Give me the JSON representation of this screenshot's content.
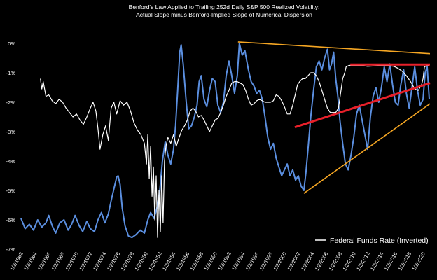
{
  "chart_data": {
    "type": "line",
    "title_lines": [
      "Benford's Law Applied to Trailing 252d Daily S&P 500 Realized Volatility:",
      "Actual Slope minus Benford-Implied Slope of Numerical Dispersion"
    ],
    "y_ticks": [
      "0%",
      "-1%",
      "-2%",
      "-3%",
      "-4%",
      "-5%",
      "-6%",
      "-7%"
    ],
    "ylim": [
      -7,
      0
    ],
    "xlim": [
      1962,
      2021
    ],
    "x_ticks": [
      "1/2/1962",
      "1/2/1964",
      "1/2/1966",
      "1/2/1968",
      "1/2/1970",
      "1/2/1972",
      "1/2/1974",
      "1/2/1976",
      "1/2/1978",
      "1/2/1980",
      "1/2/1982",
      "1/2/1984",
      "1/2/1986",
      "1/2/1988",
      "1/2/1990",
      "1/2/1992",
      "1/2/1994",
      "1/2/1996",
      "1/2/1998",
      "1/2/2000",
      "1/2/2002",
      "1/2/2004",
      "1/2/2006",
      "1/2/2008",
      "1/2/2010",
      "1/2/2012",
      "1/2/2014",
      "1/2/2016",
      "1/2/2018",
      "1/2/2020"
    ],
    "legend": [
      {
        "label": "Federal Funds Rate (Inverted)",
        "color": "#ffffff"
      }
    ],
    "series": [
      {
        "color": "#5b8fe0",
        "points": [
          [
            1962.0,
            -5.95
          ],
          [
            1962.6,
            -6.3
          ],
          [
            1963.2,
            -6.15
          ],
          [
            1963.8,
            -6.35
          ],
          [
            1964.4,
            -6.0
          ],
          [
            1965.0,
            -6.25
          ],
          [
            1965.6,
            -6.1
          ],
          [
            1966.0,
            -5.85
          ],
          [
            1966.5,
            -6.2
          ],
          [
            1967.0,
            -6.45
          ],
          [
            1967.6,
            -6.1
          ],
          [
            1968.2,
            -6.0
          ],
          [
            1968.8,
            -6.35
          ],
          [
            1969.3,
            -6.15
          ],
          [
            1969.8,
            -5.85
          ],
          [
            1970.4,
            -6.2
          ],
          [
            1970.9,
            -6.4
          ],
          [
            1971.5,
            -6.05
          ],
          [
            1972.0,
            -6.3
          ],
          [
            1972.6,
            -6.4
          ],
          [
            1973.1,
            -6.0
          ],
          [
            1973.6,
            -5.75
          ],
          [
            1974.1,
            -6.1
          ],
          [
            1974.6,
            -5.8
          ],
          [
            1975.0,
            -5.35
          ],
          [
            1975.4,
            -4.95
          ],
          [
            1975.8,
            -4.55
          ],
          [
            1976.0,
            -4.5
          ],
          [
            1976.3,
            -4.8
          ],
          [
            1976.6,
            -5.6
          ],
          [
            1977.0,
            -6.2
          ],
          [
            1977.5,
            -6.55
          ],
          [
            1978.0,
            -6.6
          ],
          [
            1978.6,
            -6.5
          ],
          [
            1979.2,
            -6.35
          ],
          [
            1979.8,
            -6.45
          ],
          [
            1980.3,
            -6.0
          ],
          [
            1980.7,
            -5.75
          ],
          [
            1981.2,
            -5.95
          ],
          [
            1981.6,
            -5.6
          ],
          [
            1982.0,
            -5.05
          ],
          [
            1982.4,
            -4.0
          ],
          [
            1982.8,
            -3.35
          ],
          [
            1983.2,
            -3.8
          ],
          [
            1983.6,
            -4.1
          ],
          [
            1984.0,
            -3.6
          ],
          [
            1984.3,
            -2.8
          ],
          [
            1984.6,
            -1.6
          ],
          [
            1984.9,
            -0.3
          ],
          [
            1985.1,
            -0.05
          ],
          [
            1985.4,
            -0.7
          ],
          [
            1985.8,
            -1.9
          ],
          [
            1986.2,
            -2.9
          ],
          [
            1986.6,
            -2.8
          ],
          [
            1987.0,
            -2.5
          ],
          [
            1987.4,
            -2.1
          ],
          [
            1987.7,
            -1.3
          ],
          [
            1988.0,
            -1.1
          ],
          [
            1988.4,
            -1.9
          ],
          [
            1988.8,
            -2.15
          ],
          [
            1989.2,
            -1.6
          ],
          [
            1989.6,
            -1.2
          ],
          [
            1990.0,
            -1.3
          ],
          [
            1990.4,
            -2.1
          ],
          [
            1990.8,
            -2.35
          ],
          [
            1991.2,
            -2.0
          ],
          [
            1991.6,
            -1.1
          ],
          [
            1992.0,
            -0.6
          ],
          [
            1992.4,
            -1.1
          ],
          [
            1992.8,
            -1.7
          ],
          [
            1993.2,
            -1.1
          ],
          [
            1993.5,
            0.0
          ],
          [
            1993.9,
            -0.4
          ],
          [
            1994.3,
            -0.25
          ],
          [
            1994.8,
            -0.9
          ],
          [
            1995.2,
            -1.3
          ],
          [
            1995.6,
            -1.45
          ],
          [
            1996.0,
            -1.7
          ],
          [
            1996.4,
            -1.6
          ],
          [
            1996.8,
            -1.9
          ],
          [
            1997.2,
            -2.5
          ],
          [
            1997.6,
            -3.2
          ],
          [
            1998.0,
            -3.6
          ],
          [
            1998.4,
            -3.4
          ],
          [
            1998.8,
            -3.9
          ],
          [
            1999.2,
            -4.2
          ],
          [
            1999.6,
            -4.5
          ],
          [
            2000.0,
            -4.3
          ],
          [
            2000.4,
            -4.1
          ],
          [
            2000.8,
            -4.5
          ],
          [
            2001.2,
            -4.3
          ],
          [
            2001.6,
            -4.65
          ],
          [
            2002.0,
            -4.5
          ],
          [
            2002.4,
            -4.85
          ],
          [
            2002.8,
            -5.0
          ],
          [
            2003.1,
            -4.4
          ],
          [
            2003.4,
            -3.6
          ],
          [
            2003.8,
            -2.5
          ],
          [
            2004.2,
            -1.6
          ],
          [
            2004.6,
            -0.8
          ],
          [
            2005.0,
            -0.6
          ],
          [
            2005.4,
            -0.9
          ],
          [
            2005.8,
            -0.5
          ],
          [
            2006.2,
            -0.2
          ],
          [
            2006.5,
            -0.9
          ],
          [
            2006.8,
            -0.7
          ],
          [
            2007.1,
            -0.3
          ],
          [
            2007.4,
            -1.2
          ],
          [
            2007.7,
            -1.8
          ],
          [
            2008.0,
            -2.6
          ],
          [
            2008.4,
            -3.4
          ],
          [
            2008.8,
            -4.1
          ],
          [
            2009.2,
            -4.3
          ],
          [
            2009.6,
            -3.8
          ],
          [
            2010.0,
            -3.2
          ],
          [
            2010.4,
            -2.4
          ],
          [
            2010.8,
            -2.1
          ],
          [
            2011.2,
            -2.6
          ],
          [
            2011.6,
            -3.1
          ],
          [
            2012.0,
            -3.6
          ],
          [
            2012.4,
            -2.5
          ],
          [
            2012.8,
            -1.8
          ],
          [
            2013.2,
            -1.5
          ],
          [
            2013.6,
            -2.0
          ],
          [
            2014.0,
            -1.5
          ],
          [
            2014.4,
            -0.8
          ],
          [
            2014.8,
            -1.3
          ],
          [
            2015.2,
            -0.7
          ],
          [
            2015.6,
            -1.4
          ],
          [
            2016.0,
            -2.0
          ],
          [
            2016.4,
            -2.1
          ],
          [
            2016.8,
            -1.4
          ],
          [
            2017.2,
            -0.9
          ],
          [
            2017.6,
            -1.7
          ],
          [
            2018.0,
            -2.2
          ],
          [
            2018.4,
            -1.5
          ],
          [
            2018.8,
            -0.8
          ],
          [
            2019.2,
            -1.6
          ],
          [
            2019.6,
            -2.1
          ],
          [
            2020.0,
            -1.9
          ],
          [
            2020.3,
            -1.0
          ],
          [
            2020.6,
            -0.8
          ],
          [
            2020.9,
            -1.9
          ]
        ]
      },
      {
        "name": "Federal Funds Rate (Inverted)",
        "color": "#ffffff",
        "points": [
          [
            1964.8,
            -1.2
          ],
          [
            1965.0,
            -1.55
          ],
          [
            1965.2,
            -1.3
          ],
          [
            1965.6,
            -1.8
          ],
          [
            1966.0,
            -1.75
          ],
          [
            1966.5,
            -1.95
          ],
          [
            1967.0,
            -2.05
          ],
          [
            1967.5,
            -1.9
          ],
          [
            1968.0,
            -2.0
          ],
          [
            1968.5,
            -2.2
          ],
          [
            1969.0,
            -2.35
          ],
          [
            1969.5,
            -2.5
          ],
          [
            1970.0,
            -2.4
          ],
          [
            1970.5,
            -2.6
          ],
          [
            1971.0,
            -2.75
          ],
          [
            1971.5,
            -2.5
          ],
          [
            1972.0,
            -2.2
          ],
          [
            1972.4,
            -2.0
          ],
          [
            1972.8,
            -2.3
          ],
          [
            1973.1,
            -2.9
          ],
          [
            1973.4,
            -3.6
          ],
          [
            1973.8,
            -3.1
          ],
          [
            1974.2,
            -2.8
          ],
          [
            1974.6,
            -3.3
          ],
          [
            1975.0,
            -2.2
          ],
          [
            1975.4,
            -2.0
          ],
          [
            1975.8,
            -2.4
          ],
          [
            1976.3,
            -1.95
          ],
          [
            1976.8,
            -2.1
          ],
          [
            1977.3,
            -2.0
          ],
          [
            1977.8,
            -2.3
          ],
          [
            1978.3,
            -2.7
          ],
          [
            1978.8,
            -2.95
          ],
          [
            1979.3,
            -3.1
          ],
          [
            1979.8,
            -3.4
          ],
          [
            1980.1,
            -4.1
          ],
          [
            1980.3,
            -3.1
          ],
          [
            1980.5,
            -4.6
          ],
          [
            1980.7,
            -3.5
          ],
          [
            1980.9,
            -5.2
          ],
          [
            1981.1,
            -4.2
          ],
          [
            1981.3,
            -6.0
          ],
          [
            1981.5,
            -4.5
          ],
          [
            1981.7,
            -6.6
          ],
          [
            1981.9,
            -5.0
          ],
          [
            1982.1,
            -6.4
          ],
          [
            1982.3,
            -4.5
          ],
          [
            1982.5,
            -6.1
          ],
          [
            1982.7,
            -4.0
          ],
          [
            1982.9,
            -3.5
          ],
          [
            1983.2,
            -3.2
          ],
          [
            1983.6,
            -3.4
          ],
          [
            1984.0,
            -3.1
          ],
          [
            1984.4,
            -3.5
          ],
          [
            1984.8,
            -3.2
          ],
          [
            1985.2,
            -2.95
          ],
          [
            1985.6,
            -2.8
          ],
          [
            1986.0,
            -2.6
          ],
          [
            1986.4,
            -2.3
          ],
          [
            1986.8,
            -2.2
          ],
          [
            1987.2,
            -2.3
          ],
          [
            1987.6,
            -2.5
          ],
          [
            1988.0,
            -2.45
          ],
          [
            1988.4,
            -2.6
          ],
          [
            1988.8,
            -2.8
          ],
          [
            1989.2,
            -3.0
          ],
          [
            1989.6,
            -2.8
          ],
          [
            1990.0,
            -2.6
          ],
          [
            1990.4,
            -2.55
          ],
          [
            1990.8,
            -2.35
          ],
          [
            1991.2,
            -2.1
          ],
          [
            1991.6,
            -1.8
          ],
          [
            1992.0,
            -1.6
          ],
          [
            1992.4,
            -1.35
          ],
          [
            1992.8,
            -1.3
          ],
          [
            1993.2,
            -1.3
          ],
          [
            1993.6,
            -1.35
          ],
          [
            1994.0,
            -1.4
          ],
          [
            1994.4,
            -1.6
          ],
          [
            1994.8,
            -1.9
          ],
          [
            1995.2,
            -2.1
          ],
          [
            1995.6,
            -2.05
          ],
          [
            1996.0,
            -1.95
          ],
          [
            1996.4,
            -1.9
          ],
          [
            1996.8,
            -1.95
          ],
          [
            1997.2,
            -2.0
          ],
          [
            1997.6,
            -2.0
          ],
          [
            1998.0,
            -2.0
          ],
          [
            1998.4,
            -1.95
          ],
          [
            1998.8,
            -1.75
          ],
          [
            1999.2,
            -1.8
          ],
          [
            1999.6,
            -1.95
          ],
          [
            2000.0,
            -2.15
          ],
          [
            2000.4,
            -2.4
          ],
          [
            2000.8,
            -2.4
          ],
          [
            2001.2,
            -2.1
          ],
          [
            2001.6,
            -1.7
          ],
          [
            2001.9,
            -1.4
          ],
          [
            2002.2,
            -1.3
          ],
          [
            2002.6,
            -1.2
          ],
          [
            2003.0,
            -1.2
          ],
          [
            2003.4,
            -1.1
          ],
          [
            2003.8,
            -1.0
          ],
          [
            2004.2,
            -1.0
          ],
          [
            2004.6,
            -1.1
          ],
          [
            2005.0,
            -1.3
          ],
          [
            2005.4,
            -1.6
          ],
          [
            2005.8,
            -1.9
          ],
          [
            2006.2,
            -2.2
          ],
          [
            2006.6,
            -2.35
          ],
          [
            2007.0,
            -2.35
          ],
          [
            2007.4,
            -2.35
          ],
          [
            2007.8,
            -2.2
          ],
          [
            2008.1,
            -1.7
          ],
          [
            2008.4,
            -1.2
          ],
          [
            2008.7,
            -1.0
          ],
          [
            2008.9,
            -0.8
          ],
          [
            2009.3,
            -0.75
          ],
          [
            2010.0,
            -0.75
          ],
          [
            2011.0,
            -0.75
          ],
          [
            2012.0,
            -0.78
          ],
          [
            2013.0,
            -0.77
          ],
          [
            2014.0,
            -0.76
          ],
          [
            2015.0,
            -0.76
          ],
          [
            2015.8,
            -0.78
          ],
          [
            2016.4,
            -0.85
          ],
          [
            2017.0,
            -0.95
          ],
          [
            2017.6,
            -1.1
          ],
          [
            2018.2,
            -1.3
          ],
          [
            2018.8,
            -1.55
          ],
          [
            2019.3,
            -1.6
          ],
          [
            2019.8,
            -1.4
          ],
          [
            2020.0,
            -1.2
          ],
          [
            2020.2,
            -0.8
          ],
          [
            2020.5,
            -0.76
          ],
          [
            2020.9,
            -0.76
          ]
        ]
      }
    ],
    "trendlines": [
      {
        "color": "#f5a623",
        "points": [
          [
            1993.3,
            0.05
          ],
          [
            2021.0,
            -0.35
          ]
        ]
      },
      {
        "color": "#f5a623",
        "points": [
          [
            2002.8,
            -5.1
          ],
          [
            2021.0,
            -2.05
          ]
        ]
      },
      {
        "color": "#e8202a",
        "points": [
          [
            2001.5,
            -2.85
          ],
          [
            2021.0,
            -1.35
          ]
        ]
      },
      {
        "color": "#e8202a",
        "points": [
          [
            2009.5,
            -0.72
          ],
          [
            2021.0,
            -0.72
          ]
        ]
      }
    ]
  }
}
